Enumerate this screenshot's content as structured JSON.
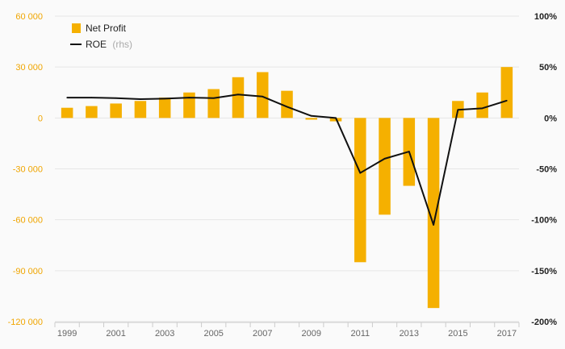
{
  "colors": {
    "bar": "#f5b000",
    "line": "#111111",
    "grid": "#e6e6e6",
    "left_tick": "#f0a500",
    "right_tick": "#222222"
  },
  "chart_data": {
    "type": "bar",
    "title": "",
    "xlabel": "",
    "ylabel": "",
    "categories": [
      "1999",
      "2000",
      "2001",
      "2002",
      "2003",
      "2004",
      "2005",
      "2006",
      "2007",
      "2008",
      "2009",
      "2010",
      "2011",
      "2012",
      "2013",
      "2014",
      "2015",
      "2016",
      "2017"
    ],
    "x_tick_labels": [
      "1999",
      "2001",
      "2003",
      "2005",
      "2007",
      "2009",
      "2011",
      "2013",
      "2015",
      "2017"
    ],
    "ylim": [
      -120000,
      60000
    ],
    "y_ticks": [
      60000,
      30000,
      0,
      -30000,
      -60000,
      -90000,
      -120000
    ],
    "y_tick_labels": [
      "60 000",
      "30 000",
      "0",
      "-30 000",
      "-60 000",
      "-90 000",
      "-120 000"
    ],
    "y2lim": [
      -200,
      100
    ],
    "y2_ticks": [
      100,
      50,
      0,
      -50,
      -100,
      -150,
      -200
    ],
    "y2_tick_labels": [
      "100%",
      "50%",
      "0%",
      "-50%",
      "-100%",
      "-150%",
      "-200%"
    ],
    "grid": true,
    "legend_position": "top-left",
    "series": [
      {
        "name": "Net Profit",
        "type": "bar",
        "axis": "left",
        "values": [
          6000,
          7000,
          8500,
          10000,
          12000,
          15000,
          17000,
          24000,
          27000,
          16000,
          -1000,
          -2000,
          -85000,
          -57000,
          -40000,
          -112000,
          10000,
          15000,
          30000
        ]
      },
      {
        "name": "ROE",
        "name_suffix": "(rhs)",
        "type": "line",
        "axis": "right",
        "values": [
          20,
          20,
          19.5,
          18.5,
          19,
          20,
          19.5,
          23,
          21,
          11,
          2,
          0,
          -54,
          -40,
          -33,
          -105,
          8,
          9.5,
          17
        ]
      }
    ]
  }
}
